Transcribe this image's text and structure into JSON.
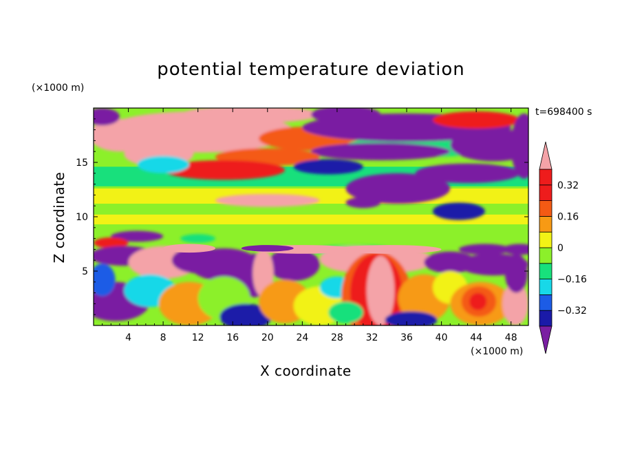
{
  "chart_data": {
    "type": "heatmap",
    "title": "potential temperature deviation",
    "xlabel": "X coordinate",
    "ylabel": "Z coordinate",
    "x_unit": "(×1000 m)",
    "y_unit": "(×1000 m)",
    "time_label": "t=698400 s",
    "xlim": [
      0,
      50
    ],
    "ylim": [
      0,
      20
    ],
    "x_ticks": [
      4,
      8,
      12,
      16,
      20,
      24,
      28,
      32,
      36,
      40,
      44,
      48
    ],
    "y_ticks": [
      5,
      10,
      15
    ],
    "colorbar": {
      "levels": [
        -0.4,
        -0.32,
        -0.24,
        -0.16,
        -0.08,
        0,
        0.08,
        0.16,
        0.24,
        0.32,
        0.4
      ],
      "labels": [
        "0.32",
        "0.16",
        "0",
        "−0.16",
        "−0.32"
      ],
      "label_values": [
        0.32,
        0.16,
        0,
        -0.16,
        -0.32
      ],
      "colors": [
        "#7a1fa2",
        "#1a1aa8",
        "#1c5ce6",
        "#18d8e8",
        "#18e07c",
        "#8cf02a",
        "#f2f216",
        "#f79a14",
        "#f45a14",
        "#ee1c1c",
        "#f4a3a8"
      ],
      "extend": "both"
    }
  }
}
